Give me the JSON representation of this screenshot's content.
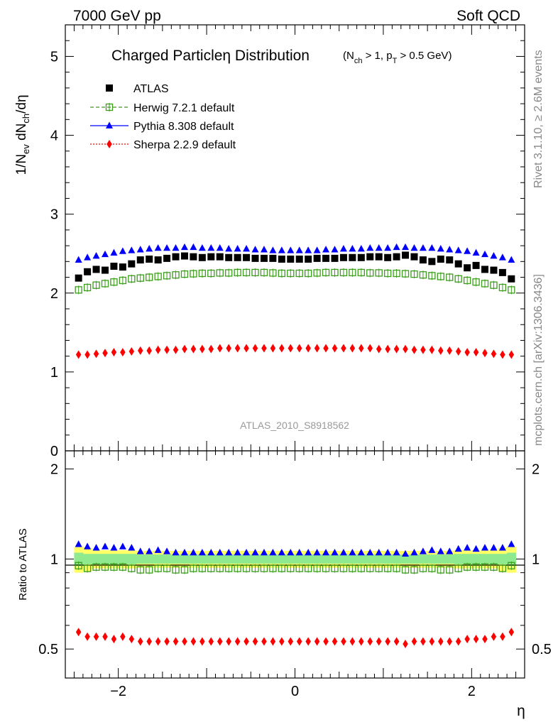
{
  "header": {
    "left": "7000 GeV pp",
    "right": "Soft QCD"
  },
  "side": {
    "rivet": "Rivet 3.1.10, ≥ 2.6M events",
    "mcplots": "mcplots.cern.ch [arXiv:1306.3436]"
  },
  "watermark": "ATLAS_2010_S8918562",
  "chart_data": [
    {
      "type": "scatter",
      "panel": "main",
      "title": "Charged Particleη Distribution",
      "title_cuts": "(N_ch > 1, p_T > 0.5 GeV)",
      "ylabel": "1/N_ev dN_ch/dη",
      "xlim": [
        -2.6,
        2.6
      ],
      "ylim": [
        0,
        5.4
      ],
      "yticks": [
        "1",
        "2",
        "3",
        "4",
        "5"
      ],
      "y_zero_label": "0",
      "legend_position": "top-left",
      "x": [
        -2.45,
        -2.35,
        -2.25,
        -2.15,
        -2.05,
        -1.95,
        -1.85,
        -1.75,
        -1.65,
        -1.55,
        -1.45,
        -1.35,
        -1.25,
        -1.15,
        -1.05,
        -0.95,
        -0.85,
        -0.75,
        -0.65,
        -0.55,
        -0.45,
        -0.35,
        -0.25,
        -0.15,
        -0.05,
        0.05,
        0.15,
        0.25,
        0.35,
        0.45,
        0.55,
        0.65,
        0.75,
        0.85,
        0.95,
        1.05,
        1.15,
        1.25,
        1.35,
        1.45,
        1.55,
        1.65,
        1.75,
        1.85,
        1.95,
        2.05,
        2.15,
        2.25,
        2.35,
        2.45
      ],
      "series": [
        {
          "name": "ATLAS",
          "marker": "square-filled",
          "color": "#000000",
          "values": [
            2.19,
            2.27,
            2.3,
            2.29,
            2.34,
            2.33,
            2.37,
            2.42,
            2.43,
            2.42,
            2.44,
            2.46,
            2.47,
            2.46,
            2.45,
            2.46,
            2.46,
            2.45,
            2.45,
            2.45,
            2.44,
            2.44,
            2.44,
            2.43,
            2.43,
            2.43,
            2.43,
            2.44,
            2.44,
            2.44,
            2.45,
            2.45,
            2.45,
            2.46,
            2.46,
            2.45,
            2.46,
            2.48,
            2.46,
            2.42,
            2.4,
            2.43,
            2.42,
            2.37,
            2.32,
            2.35,
            2.3,
            2.29,
            2.26,
            2.18
          ]
        },
        {
          "name": "Herwig 7.2.1 default",
          "marker": "square-open",
          "line": "dashed",
          "color": "#3a9e1a",
          "values": [
            2.04,
            2.07,
            2.1,
            2.12,
            2.14,
            2.16,
            2.18,
            2.19,
            2.2,
            2.21,
            2.22,
            2.23,
            2.24,
            2.245,
            2.25,
            2.25,
            2.255,
            2.255,
            2.26,
            2.26,
            2.26,
            2.26,
            2.255,
            2.25,
            2.25,
            2.25,
            2.25,
            2.255,
            2.26,
            2.26,
            2.26,
            2.26,
            2.26,
            2.255,
            2.255,
            2.25,
            2.25,
            2.245,
            2.24,
            2.23,
            2.22,
            2.21,
            2.2,
            2.18,
            2.16,
            2.14,
            2.12,
            2.1,
            2.07,
            2.04
          ]
        },
        {
          "name": "Pythia 8.308 default",
          "marker": "triangle-filled",
          "line": "solid",
          "color": "#0000ff",
          "values": [
            2.42,
            2.45,
            2.47,
            2.49,
            2.51,
            2.53,
            2.54,
            2.55,
            2.56,
            2.57,
            2.57,
            2.57,
            2.58,
            2.58,
            2.57,
            2.57,
            2.57,
            2.56,
            2.56,
            2.56,
            2.55,
            2.55,
            2.54,
            2.54,
            2.54,
            2.54,
            2.54,
            2.54,
            2.55,
            2.55,
            2.56,
            2.56,
            2.56,
            2.57,
            2.57,
            2.57,
            2.58,
            2.58,
            2.57,
            2.57,
            2.57,
            2.56,
            2.55,
            2.54,
            2.53,
            2.51,
            2.49,
            2.47,
            2.45,
            2.42
          ]
        },
        {
          "name": "Sherpa 2.2.9 default",
          "marker": "diamond-filled",
          "line": "dotted",
          "color": "#ff0000",
          "values": [
            1.22,
            1.22,
            1.23,
            1.24,
            1.25,
            1.25,
            1.26,
            1.27,
            1.27,
            1.28,
            1.28,
            1.28,
            1.29,
            1.29,
            1.29,
            1.29,
            1.3,
            1.3,
            1.3,
            1.3,
            1.3,
            1.3,
            1.3,
            1.3,
            1.3,
            1.3,
            1.3,
            1.3,
            1.3,
            1.3,
            1.3,
            1.3,
            1.3,
            1.3,
            1.29,
            1.29,
            1.29,
            1.29,
            1.28,
            1.28,
            1.28,
            1.27,
            1.27,
            1.26,
            1.25,
            1.25,
            1.24,
            1.23,
            1.22,
            1.22
          ]
        }
      ]
    },
    {
      "type": "scatter",
      "panel": "ratio",
      "ylabel": "Ratio to ATLAS",
      "xlabel": "η",
      "xlim": [
        -2.6,
        2.6
      ],
      "ylim": [
        0.4,
        2.3
      ],
      "y_scale": "log",
      "yticks": [
        "0.5",
        "1",
        "2"
      ],
      "xticks": [
        "−2",
        "0",
        "2"
      ],
      "band": {
        "stat_color": "#8fe98f",
        "total_color": "#ffff66",
        "stat_half_width": [
          0.05,
          0.04,
          0.04,
          0.04,
          0.04,
          0.04,
          0.04,
          0.035,
          0.035,
          0.035,
          0.035,
          0.035,
          0.035,
          0.035,
          0.035,
          0.035,
          0.035,
          0.035,
          0.035,
          0.035,
          0.035,
          0.035,
          0.035,
          0.035,
          0.035,
          0.035,
          0.035,
          0.035,
          0.035,
          0.035,
          0.035,
          0.035,
          0.035,
          0.035,
          0.035,
          0.035,
          0.035,
          0.035,
          0.035,
          0.035,
          0.035,
          0.035,
          0.035,
          0.04,
          0.04,
          0.04,
          0.04,
          0.04,
          0.04,
          0.05
        ],
        "total_half_width": [
          0.1,
          0.09,
          0.07,
          0.07,
          0.07,
          0.07,
          0.07,
          0.065,
          0.065,
          0.065,
          0.065,
          0.065,
          0.065,
          0.065,
          0.065,
          0.065,
          0.065,
          0.065,
          0.065,
          0.065,
          0.065,
          0.065,
          0.065,
          0.065,
          0.065,
          0.065,
          0.065,
          0.065,
          0.065,
          0.065,
          0.065,
          0.065,
          0.065,
          0.065,
          0.065,
          0.065,
          0.065,
          0.065,
          0.065,
          0.065,
          0.065,
          0.065,
          0.065,
          0.07,
          0.07,
          0.07,
          0.07,
          0.07,
          0.09,
          0.1
        ]
      },
      "series": [
        {
          "name": "Herwig 7.2.1 default",
          "marker": "square-open",
          "color": "#3a9e1a",
          "values": [
            0.95,
            0.93,
            0.94,
            0.94,
            0.94,
            0.94,
            0.93,
            0.92,
            0.92,
            0.93,
            0.93,
            0.92,
            0.92,
            0.93,
            0.93,
            0.93,
            0.93,
            0.93,
            0.93,
            0.93,
            0.93,
            0.93,
            0.93,
            0.93,
            0.93,
            0.93,
            0.93,
            0.93,
            0.93,
            0.93,
            0.93,
            0.93,
            0.93,
            0.93,
            0.93,
            0.93,
            0.93,
            0.92,
            0.92,
            0.93,
            0.93,
            0.92,
            0.92,
            0.93,
            0.94,
            0.94,
            0.94,
            0.94,
            0.93,
            0.95
          ]
        },
        {
          "name": "Pythia 8.308 default",
          "marker": "triangle-filled",
          "color": "#0000ff",
          "values": [
            1.12,
            1.1,
            1.09,
            1.1,
            1.09,
            1.1,
            1.09,
            1.06,
            1.06,
            1.07,
            1.06,
            1.05,
            1.05,
            1.05,
            1.05,
            1.05,
            1.05,
            1.05,
            1.05,
            1.05,
            1.05,
            1.05,
            1.05,
            1.05,
            1.05,
            1.05,
            1.05,
            1.05,
            1.05,
            1.05,
            1.05,
            1.05,
            1.05,
            1.05,
            1.05,
            1.05,
            1.05,
            1.04,
            1.05,
            1.06,
            1.07,
            1.06,
            1.06,
            1.08,
            1.09,
            1.08,
            1.09,
            1.09,
            1.09,
            1.12
          ]
        },
        {
          "name": "Sherpa 2.2.9 default",
          "marker": "diamond-filled",
          "color": "#ff0000",
          "values": [
            0.57,
            0.55,
            0.55,
            0.55,
            0.54,
            0.55,
            0.54,
            0.53,
            0.53,
            0.53,
            0.53,
            0.53,
            0.53,
            0.53,
            0.53,
            0.53,
            0.53,
            0.53,
            0.53,
            0.53,
            0.53,
            0.53,
            0.53,
            0.53,
            0.53,
            0.53,
            0.53,
            0.53,
            0.53,
            0.53,
            0.53,
            0.53,
            0.53,
            0.53,
            0.53,
            0.53,
            0.53,
            0.52,
            0.53,
            0.53,
            0.53,
            0.53,
            0.53,
            0.53,
            0.54,
            0.54,
            0.54,
            0.55,
            0.55,
            0.57
          ]
        }
      ]
    }
  ]
}
